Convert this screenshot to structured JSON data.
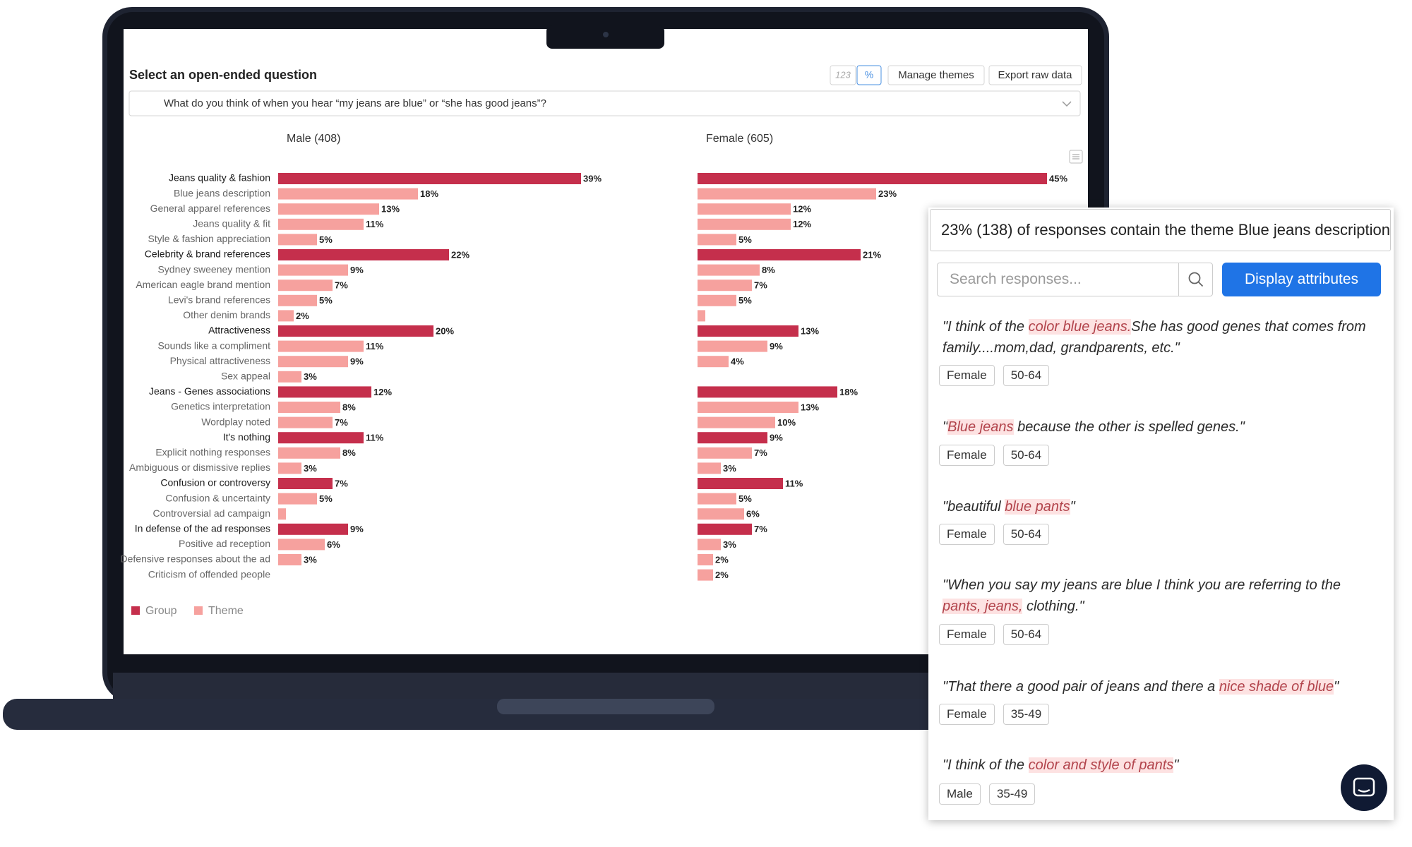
{
  "header": {
    "title": "Select an open-ended question",
    "toggle_count": "123",
    "toggle_percent": "%",
    "manage_button": "Manage themes",
    "export_button": "Export raw data",
    "question": "What do you think of when you hear “my jeans are blue” or “she has good jeans”?"
  },
  "chart_data": [
    {
      "type": "bar",
      "title": "Male (408)",
      "categories": [
        "Jeans quality & fashion",
        "Blue jeans description",
        "General apparel references",
        "Jeans quality & fit",
        "Style & fashion appreciation",
        "Celebrity & brand references",
        "Sydney sweeney mention",
        "American eagle brand mention",
        "Levi's brand references",
        "Other denim brands",
        "Attractiveness",
        "Sounds like a compliment",
        "Physical attractiveness",
        "Sex appeal",
        "Jeans - Genes associations",
        "Genetics interpretation",
        "Wordplay noted",
        "It's nothing",
        "Explicit nothing responses",
        "Ambiguous or dismissive replies",
        "Confusion or controversy",
        "Confusion & uncertainty",
        "Controversial ad campaign",
        "In defense of the ad responses",
        "Positive ad reception",
        "Defensive responses about the ad",
        "Criticism of offended people"
      ],
      "series": [
        {
          "name": "Group",
          "color": "#c52f4c",
          "values": [
            39,
            null,
            null,
            null,
            null,
            22,
            null,
            null,
            null,
            null,
            20,
            null,
            null,
            null,
            12,
            null,
            null,
            11,
            null,
            null,
            7,
            null,
            null,
            9,
            null,
            null,
            null
          ],
          "value_labels": [
            "39%",
            null,
            null,
            null,
            null,
            "22%",
            null,
            null,
            null,
            null,
            "20%",
            null,
            null,
            null,
            "12%",
            null,
            null,
            "11%",
            null,
            null,
            "7%",
            null,
            null,
            "9%",
            null,
            null,
            null
          ]
        },
        {
          "name": "Theme",
          "color": "#f6a19e",
          "values": [
            null,
            18,
            13,
            11,
            5,
            null,
            9,
            7,
            5,
            2,
            null,
            11,
            9,
            3,
            null,
            8,
            7,
            null,
            8,
            3,
            null,
            5,
            1,
            null,
            6,
            3,
            0
          ],
          "value_labels": [
            null,
            "18%",
            "13%",
            "11%",
            "5%",
            null,
            "9%",
            "7%",
            "5%",
            "2%",
            null,
            "11%",
            "9%",
            "3%",
            null,
            "8%",
            "7%",
            null,
            "8%",
            "3%",
            null,
            "5%",
            null,
            null,
            "6%",
            "3%",
            null
          ]
        }
      ]
    },
    {
      "type": "bar",
      "title": "Female (605)",
      "series": [
        {
          "color": "#c52f4c",
          "values": [
            45,
            null,
            null,
            null,
            null,
            21,
            null,
            null,
            null,
            null,
            13,
            null,
            null,
            null,
            18,
            null,
            null,
            9,
            null,
            null,
            11,
            null,
            null,
            7,
            null,
            null,
            null
          ],
          "value_labels": [
            "45%",
            null,
            null,
            null,
            null,
            "21%",
            null,
            null,
            null,
            null,
            "13%",
            null,
            null,
            null,
            "18%",
            null,
            null,
            "9%",
            null,
            null,
            "11%",
            null,
            null,
            "7%",
            null,
            null,
            null
          ]
        },
        {
          "color": "#f6a19e",
          "values": [
            null,
            23,
            12,
            12,
            5,
            null,
            8,
            7,
            5,
            1,
            null,
            9,
            4,
            0,
            null,
            13,
            10,
            null,
            7,
            3,
            null,
            5,
            6,
            null,
            3,
            2,
            2
          ],
          "value_labels": [
            null,
            "23%",
            "12%",
            "12%",
            "5%",
            null,
            "8%",
            "7%",
            "5%",
            null,
            null,
            "9%",
            "4%",
            null,
            null,
            "13%",
            "10%",
            null,
            "7%",
            "3%",
            null,
            "5%",
            "6%",
            null,
            "3%",
            "2%",
            "2%"
          ]
        }
      ]
    }
  ],
  "panel": {
    "summary": "23% (138) of responses contain the theme Blue jeans description",
    "search_placeholder": "Search responses...",
    "button": "Display attributes",
    "responses": [
      {
        "parts": [
          {
            "text": "\"I think of the ",
            "highlight": false
          },
          {
            "text": "color blue jeans.",
            "highlight": true
          },
          {
            "text": "She has good genes that comes from family....mom,dad, grandparents, etc.\"",
            "highlight": false
          }
        ],
        "tags": [
          "Female",
          "50-64"
        ]
      },
      {
        "parts": [
          {
            "text": "\"",
            "highlight": false
          },
          {
            "text": "Blue jeans",
            "highlight": true
          },
          {
            "text": " because the other is spelled genes.\"",
            "highlight": false
          }
        ],
        "tags": [
          "Female",
          "50-64"
        ]
      },
      {
        "parts": [
          {
            "text": "\"beautiful ",
            "highlight": false
          },
          {
            "text": "blue pants",
            "highlight": true
          },
          {
            "text": "\"",
            "highlight": false
          }
        ],
        "tags": [
          "Female",
          "50-64"
        ]
      },
      {
        "parts": [
          {
            "text": "\"When you say my jeans are blue I think you are referring to the ",
            "highlight": false
          },
          {
            "text": "pants, jeans,",
            "highlight": true
          },
          {
            "text": " clothing.\"",
            "highlight": false
          }
        ],
        "tags": [
          "Female",
          "50-64"
        ]
      },
      {
        "parts": [
          {
            "text": "\"That there a good pair of jeans and there a ",
            "highlight": false
          },
          {
            "text": "nice shade of blue",
            "highlight": true
          },
          {
            "text": "\"",
            "highlight": false
          }
        ],
        "tags": [
          "Female",
          "35-49"
        ]
      },
      {
        "parts": [
          {
            "text": "\"I think of the ",
            "highlight": false
          },
          {
            "text": "color and style of pants",
            "highlight": true
          },
          {
            "text": "\"",
            "highlight": false
          }
        ],
        "tags": [
          "Male",
          "35-49"
        ]
      }
    ]
  }
}
